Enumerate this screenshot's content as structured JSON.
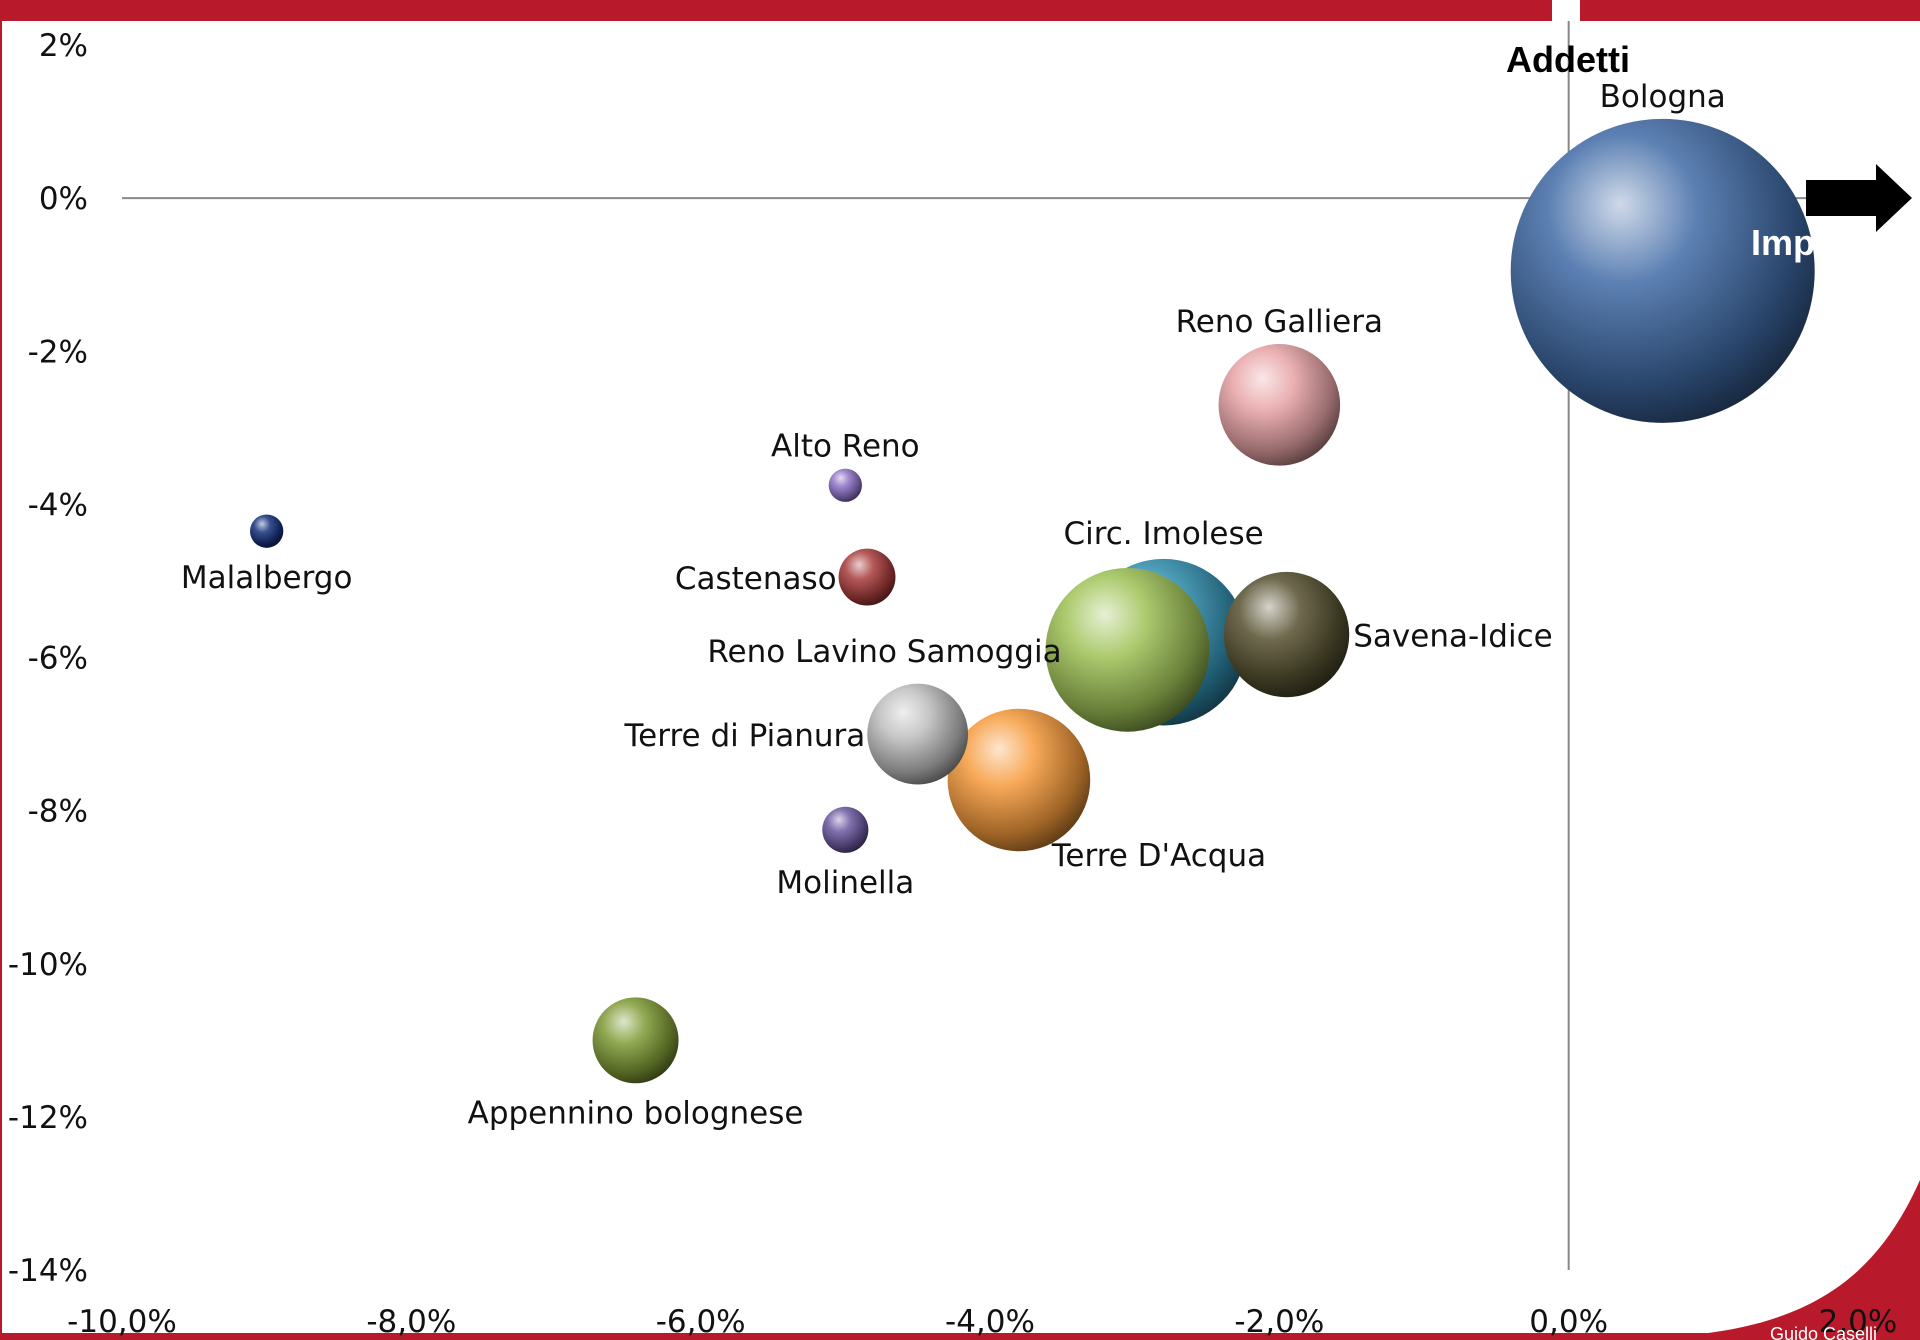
{
  "colors": {
    "frame_red": "#B81A2B",
    "axis_line": "#888888"
  },
  "axis_titles": {
    "y": "Addetti",
    "x": "Imprese"
  },
  "footer_text": "Guido Caselli",
  "chart_data": {
    "type": "bubble",
    "title": "",
    "xlabel": "Imprese",
    "ylabel": "Addetti",
    "xlim": [
      -10.0,
      2.0
    ],
    "ylim": [
      -14,
      2
    ],
    "x_ticks": [
      -10,
      -8,
      -6,
      -4,
      -2,
      0,
      2
    ],
    "x_tick_labels": [
      "-10,0%",
      "-8,0%",
      "-6,0%",
      "-4,0%",
      "-2,0%",
      "0,0%",
      "2,0%"
    ],
    "y_ticks": [
      2,
      0,
      -2,
      -4,
      -6,
      -8,
      -10,
      -12,
      -14
    ],
    "y_tick_labels": [
      "2%",
      "0%",
      "-2%",
      "-4%",
      "-6%",
      "-8%",
      "-10%",
      "-12%",
      "-14%"
    ],
    "grid": false,
    "points": [
      {
        "name": "Bologna",
        "x": 0.65,
        "y": -0.95,
        "size": 100,
        "color": "#3F6AA5",
        "label_pos": "top"
      },
      {
        "name": "Reno Galliera",
        "x": -2.0,
        "y": -2.7,
        "size": 16,
        "color": "#E8A3A6",
        "label_pos": "top"
      },
      {
        "name": "Alto Reno",
        "x": -5.0,
        "y": -3.75,
        "size": 1.2,
        "color": "#8E72C6",
        "label_pos": "top"
      },
      {
        "name": "Malalbergo",
        "x": -9.0,
        "y": -4.35,
        "size": 1.2,
        "color": "#14307A",
        "label_pos": "bottom"
      },
      {
        "name": "Castenaso",
        "x": -4.85,
        "y": -4.95,
        "size": 3.5,
        "color": "#A83A3A",
        "label_pos": "left"
      },
      {
        "name": "Circ. Imolese",
        "x": -2.8,
        "y": -5.8,
        "size": 30,
        "color": "#2F8EAE",
        "label_pos": "top"
      },
      {
        "name": "Reno Lavino Samoggia",
        "x": -3.05,
        "y": -5.9,
        "size": 29,
        "color": "#9EC256",
        "label_pos": "left"
      },
      {
        "name": "Savena-Idice",
        "x": -1.95,
        "y": -5.7,
        "size": 17,
        "color": "#55502F",
        "label_pos": "right"
      },
      {
        "name": "Terre di Pianura",
        "x": -4.5,
        "y": -7.0,
        "size": 11,
        "color": "#BDBDBD",
        "label_pos": "left"
      },
      {
        "name": "Terre D'Acqua",
        "x": -3.8,
        "y": -7.6,
        "size": 22,
        "color": "#F59A3A",
        "label_pos": "bottom-right"
      },
      {
        "name": "Molinella",
        "x": -5.0,
        "y": -8.25,
        "size": 2.3,
        "color": "#6C58A0",
        "label_pos": "bottom"
      },
      {
        "name": "Appennino bolognese",
        "x": -6.45,
        "y": -11.0,
        "size": 8,
        "color": "#7E9A34",
        "label_pos": "bottom"
      }
    ]
  }
}
